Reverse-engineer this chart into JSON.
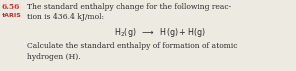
{
  "number": "6.56",
  "aris": "†ARIS",
  "line1": "The standard enthalpy change for the following reac-",
  "line2": "tion is 436.4 kJ/mol:",
  "reaction_text": "$\\mathrm{H_2}$(g) ⟶ H(g) + H(g)",
  "line3": "Calculate the standard enthalpy of formation of atomic",
  "line4": "hydrogen (H).",
  "number_color": "#c0392b",
  "aris_color": "#b03030",
  "text_color": "#2a2a2a",
  "bg_color": "#edeae2",
  "main_fontsize": 5.5,
  "aris_fontsize": 5.0,
  "reaction_fontsize": 5.5
}
